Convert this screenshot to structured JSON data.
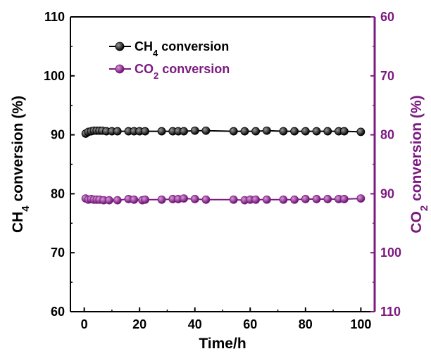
{
  "chart_data": {
    "type": "scatter",
    "xlabel": "Time/h",
    "ylabel_left": {
      "main": "CH",
      "sub": "4",
      "rest": " conversion (%)"
    },
    "ylabel_right": {
      "main": "CO",
      "sub": "2",
      "rest": " conversion (%)"
    },
    "xlim": [
      -5,
      105
    ],
    "xticks": [
      0,
      20,
      40,
      60,
      80,
      100
    ],
    "xtick_labels": [
      "0",
      "20",
      "40",
      "60",
      "80",
      "100"
    ],
    "ylim_left": [
      60,
      110
    ],
    "yticks_left": [
      60,
      70,
      80,
      90,
      100,
      110
    ],
    "ytick_labels_left": [
      "60",
      "70",
      "80",
      "90",
      "100",
      "110"
    ],
    "ylim_right": [
      110,
      60
    ],
    "right_axis_inverted": true,
    "yticks_right": [
      60,
      70,
      80,
      90,
      100,
      110
    ],
    "ytick_labels_right": [
      "60",
      "70",
      "80",
      "90",
      "100",
      "110"
    ],
    "legend_placement": "top-left",
    "colors": {
      "ch4": "#000000",
      "co2": "#7b1a80",
      "right_axis": "#7b1a80"
    },
    "series": [
      {
        "name": {
          "main": "CH",
          "sub": "4",
          "rest": " conversion"
        },
        "axis": "left",
        "color": "#000000",
        "x": [
          0.5,
          1.5,
          2.5,
          3.5,
          4.5,
          5.5,
          6.5,
          8,
          10,
          12,
          16,
          18,
          20,
          22,
          28,
          32,
          34,
          36,
          40,
          44,
          54,
          58,
          62,
          66,
          72,
          76,
          80,
          84,
          88,
          92,
          94,
          100
        ],
        "y": [
          90.2,
          90.5,
          90.6,
          90.7,
          90.7,
          90.7,
          90.7,
          90.6,
          90.6,
          90.6,
          90.6,
          90.6,
          90.6,
          90.6,
          90.6,
          90.6,
          90.6,
          90.6,
          90.7,
          90.7,
          90.6,
          90.6,
          90.6,
          90.7,
          90.6,
          90.6,
          90.6,
          90.6,
          90.6,
          90.6,
          90.6,
          90.5
        ]
      },
      {
        "name": {
          "main": "CO",
          "sub": "2",
          "rest": " conversion"
        },
        "axis": "right",
        "color": "#7b1a80",
        "x": [
          0.5,
          1.5,
          2.5,
          3.5,
          4.5,
          5.5,
          7,
          9,
          12,
          16,
          18,
          21,
          22,
          28,
          32,
          34,
          36,
          40,
          44,
          54,
          58,
          60,
          62,
          66,
          72,
          76,
          80,
          84,
          88,
          92,
          94,
          100
        ],
        "y": [
          90.8,
          91.0,
          90.9,
          91.0,
          91.0,
          91.0,
          91.1,
          91.1,
          91.1,
          90.9,
          91.0,
          91.1,
          91.0,
          91.0,
          90.9,
          90.9,
          90.8,
          90.9,
          91.0,
          91.0,
          91.1,
          91.0,
          91.0,
          91.0,
          91.0,
          91.0,
          90.9,
          90.9,
          90.9,
          90.9,
          90.9,
          90.8
        ]
      }
    ]
  }
}
